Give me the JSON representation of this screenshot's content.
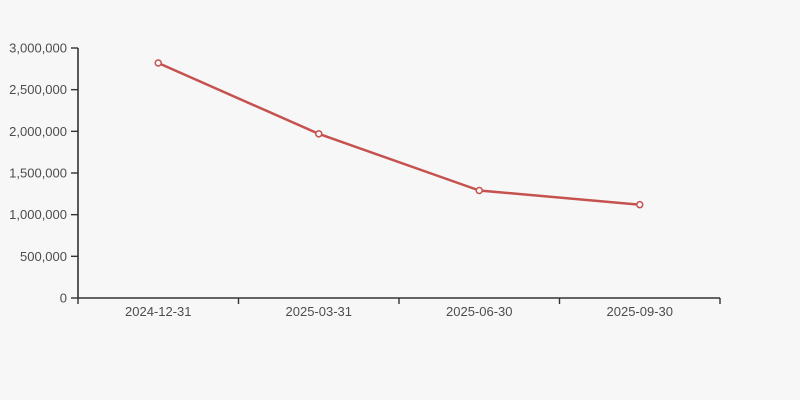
{
  "chart_data": {
    "type": "line",
    "title": "",
    "xlabel": "",
    "ylabel": "",
    "categories": [
      "2024-12-31",
      "2025-03-31",
      "2025-06-30",
      "2025-09-30"
    ],
    "series": [
      {
        "name": "series-1",
        "values": [
          2820000,
          1970000,
          1290000,
          1120000
        ]
      }
    ],
    "ylim": [
      0,
      3000000
    ],
    "ytick_interval": 500000,
    "ytick_labels": [
      "0",
      "500,000",
      "1,000,000",
      "1,500,000",
      "2,000,000",
      "2,500,000",
      "3,000,000"
    ],
    "grid": false,
    "legend_position": "none",
    "marker_style": "open-circle",
    "colors": {
      "line": "#c5524e",
      "marker_fill": "#f7f7f7",
      "axis": "#333333",
      "tick_text": "#4d4d4d",
      "background": "#f7f7f7"
    }
  }
}
